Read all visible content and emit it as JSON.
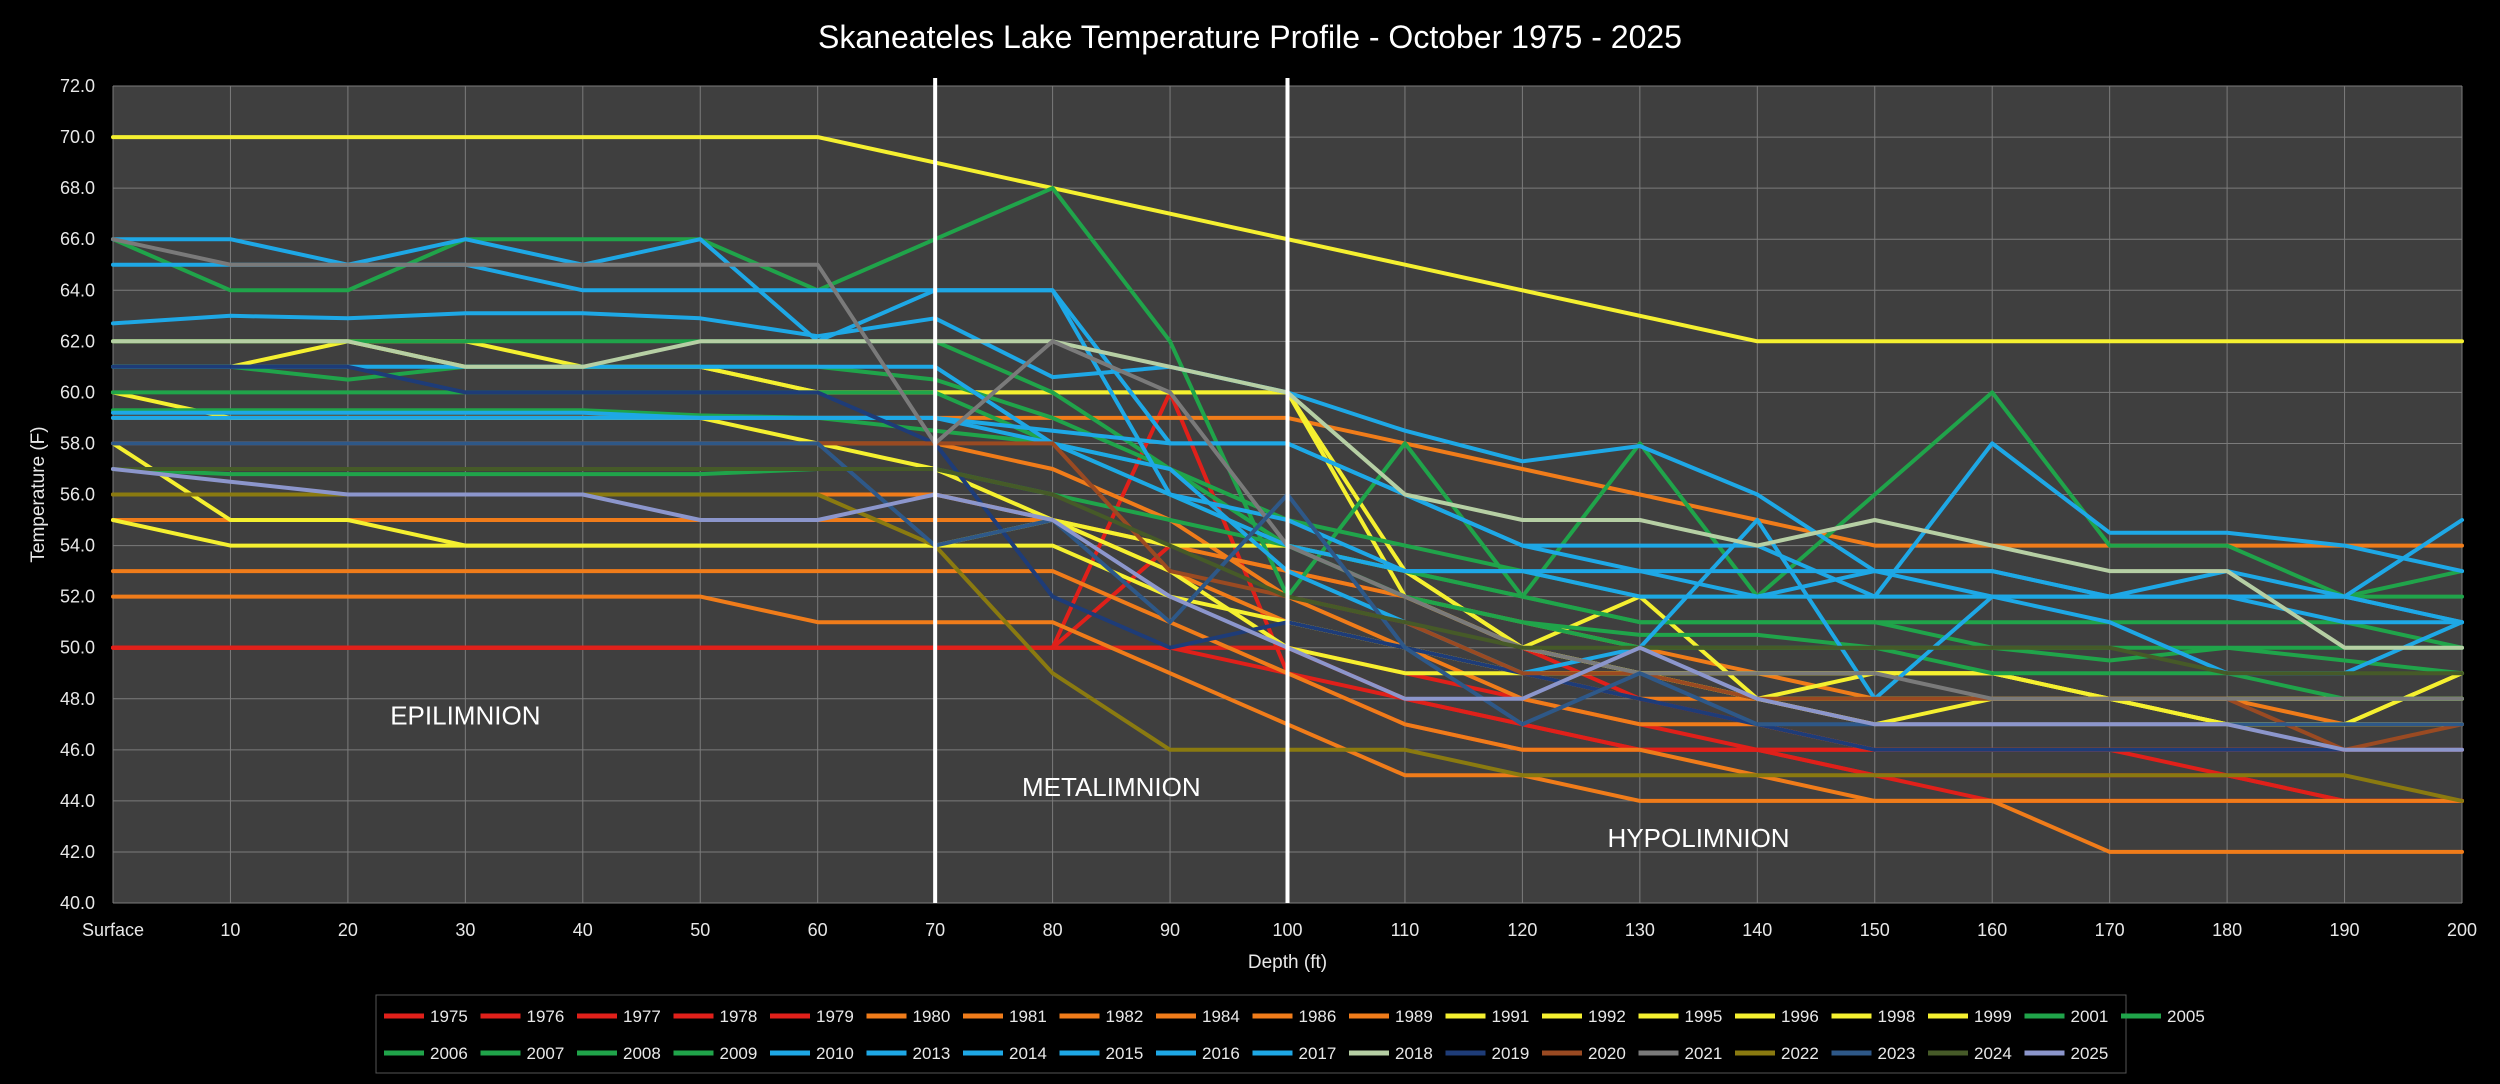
{
  "chart_data": {
    "type": "line",
    "title": "Skaneateles Lake Temperature Profile - October 1975 - 2025",
    "xlabel": "Depth (ft)",
    "ylabel": "Temperature (F)",
    "x": [
      "Surface",
      "10",
      "20",
      "30",
      "40",
      "50",
      "60",
      "70",
      "80",
      "90",
      "100",
      "110",
      "120",
      "130",
      "140",
      "150",
      "160",
      "170",
      "180",
      "190",
      "200"
    ],
    "ylim": [
      40,
      72
    ],
    "yticks": [
      "40.0",
      "42.0",
      "44.0",
      "46.0",
      "48.0",
      "50.0",
      "52.0",
      "54.0",
      "56.0",
      "58.0",
      "60.0",
      "62.0",
      "64.0",
      "66.0",
      "68.0",
      "70.0",
      "72.0"
    ],
    "grid": true,
    "legend_position": "bottom",
    "reference_lines": [
      70,
      100
    ],
    "annotations": [
      {
        "text": "EPILIMNION",
        "x": 30,
        "y": 47
      },
      {
        "text": "METALIMNION",
        "x": 85,
        "y": 44.2
      },
      {
        "text": "HYPOLIMNION",
        "x": 135,
        "y": 42.2
      }
    ],
    "series": [
      {
        "name": "1975",
        "color": "#e0201a",
        "values": [
          50,
          50,
          50,
          50,
          50,
          50,
          50,
          50,
          50,
          50,
          50,
          49,
          48,
          47,
          46,
          45,
          44,
          44,
          44,
          44,
          44
        ]
      },
      {
        "name": "1976",
        "color": "#e0201a",
        "values": [
          50,
          50,
          50,
          50,
          50,
          50,
          50,
          50,
          50,
          50,
          49,
          48,
          47,
          46,
          46,
          45,
          45,
          45,
          45,
          44,
          44
        ]
      },
      {
        "name": "1977",
        "color": "#e0201a",
        "values": [
          50,
          50,
          50,
          50,
          50,
          50,
          50,
          50,
          50,
          50,
          50,
          48,
          47,
          46,
          46,
          46,
          46,
          46,
          46,
          46,
          46
        ]
      },
      {
        "name": "1978",
        "color": "#e0201a",
        "values": [
          50,
          50,
          50,
          50,
          50,
          50,
          50,
          50,
          50,
          60,
          49,
          47,
          46,
          46,
          46,
          46,
          46,
          46,
          45,
          44,
          44
        ]
      },
      {
        "name": "1979",
        "color": "#e0201a",
        "values": [
          50,
          50,
          50,
          50,
          50,
          50,
          50,
          50,
          50,
          54,
          53,
          52,
          50,
          48,
          47,
          46,
          46,
          46,
          46,
          46,
          46
        ]
      },
      {
        "name": "1980",
        "color": "#f07c1a",
        "values": [
          52,
          52,
          52,
          52,
          52,
          52,
          51,
          51,
          51,
          49,
          47,
          45,
          45,
          44,
          44,
          44,
          44,
          42,
          42,
          42,
          42
        ]
      },
      {
        "name": "1981",
        "color": "#f07c1a",
        "values": [
          53,
          53,
          53,
          53,
          53,
          53,
          53,
          53,
          53,
          51,
          49,
          47,
          46,
          46,
          45,
          44,
          44,
          44,
          44,
          44,
          44
        ]
      },
      {
        "name": "1982",
        "color": "#f07c1a",
        "values": [
          55,
          55,
          55,
          55,
          55,
          55,
          55,
          55,
          55,
          53,
          51,
          50,
          49,
          48,
          48,
          47,
          47,
          47,
          47,
          47,
          47
        ]
      },
      {
        "name": "1984",
        "color": "#f07c1a",
        "values": [
          56,
          56,
          56,
          56,
          56,
          56,
          56,
          56,
          55,
          54,
          53,
          52,
          51,
          50,
          49,
          48,
          48,
          48,
          48,
          47,
          47
        ]
      },
      {
        "name": "1986",
        "color": "#f07c1a",
        "values": [
          58,
          58,
          58,
          58,
          58,
          58,
          58,
          58,
          57,
          55,
          52,
          50,
          48,
          47,
          47,
          46,
          46,
          46,
          46,
          46,
          46
        ]
      },
      {
        "name": "1989",
        "color": "#f07c1a",
        "values": [
          59,
          59,
          59,
          59,
          59,
          59,
          59,
          59,
          59,
          59,
          59,
          58,
          57,
          56,
          55,
          54,
          54,
          54,
          54,
          54,
          54
        ]
      },
      {
        "name": "1991",
        "color": "#f5f030",
        "values": [
          70,
          70,
          70,
          70,
          70,
          70,
          70,
          69,
          68,
          67,
          66,
          65,
          64,
          63,
          62,
          62,
          62,
          62,
          62,
          62,
          62
        ]
      },
      {
        "name": "1992",
        "color": "#f5f030",
        "values": [
          62,
          62,
          62,
          61,
          61,
          61,
          60,
          60,
          60,
          60,
          60,
          53,
          50,
          49,
          48,
          48,
          48,
          48,
          47,
          47,
          49
        ]
      },
      {
        "name": "1995",
        "color": "#f5f030",
        "values": [
          61,
          61,
          62,
          62,
          61,
          61,
          60,
          60,
          60,
          60,
          60,
          52,
          50,
          52,
          48,
          49,
          49,
          48,
          47,
          47,
          49
        ]
      },
      {
        "name": "1996",
        "color": "#f5f030",
        "values": [
          55,
          54,
          54,
          54,
          54,
          54,
          54,
          54,
          55,
          54,
          54,
          53,
          50,
          49,
          49,
          49,
          49,
          48,
          48,
          48,
          48
        ]
      },
      {
        "name": "1998",
        "color": "#f5f030",
        "values": [
          58,
          55,
          55,
          54,
          54,
          54,
          54,
          54,
          54,
          52,
          51,
          50,
          49,
          49,
          48,
          47,
          48,
          48,
          47,
          47,
          47
        ]
      },
      {
        "name": "1999",
        "color": "#f5f030",
        "values": [
          60,
          59,
          59,
          59,
          59,
          59,
          58,
          57,
          55,
          53,
          50,
          49,
          49,
          49,
          49,
          49,
          49,
          48,
          48,
          48,
          48
        ]
      },
      {
        "name": "2001",
        "color": "#20a44a",
        "values": [
          66,
          64,
          64,
          66,
          66,
          66,
          64,
          66,
          68,
          62,
          52,
          58,
          52,
          58,
          52,
          56,
          60,
          54,
          54,
          52,
          53
        ]
      },
      {
        "name": "2005",
        "color": "#20a44a",
        "values": [
          62,
          62,
          62,
          62,
          62,
          62,
          62,
          62,
          60,
          57,
          55,
          54,
          53,
          52,
          52,
          52,
          52,
          52,
          52,
          52,
          52
        ]
      },
      {
        "name": "2006",
        "color": "#20a44a",
        "values": [
          61,
          61,
          60.5,
          61,
          61,
          61,
          61,
          60.5,
          59,
          57,
          54,
          53,
          52,
          51,
          51,
          51,
          51,
          51,
          51,
          51,
          50
        ]
      },
      {
        "name": "2007",
        "color": "#20a44a",
        "values": [
          57,
          56.8,
          56.8,
          56.8,
          56.8,
          56.8,
          57,
          57,
          56,
          55,
          54,
          53,
          52,
          51,
          51,
          51,
          50,
          50,
          50,
          50,
          50
        ]
      },
      {
        "name": "2008",
        "color": "#20a44a",
        "values": [
          60,
          60,
          60,
          60,
          60,
          60,
          60,
          60,
          58,
          56,
          54,
          52,
          51,
          50,
          50,
          50,
          49,
          49,
          49,
          48,
          48
        ]
      },
      {
        "name": "2009",
        "color": "#20a44a",
        "values": [
          59.3,
          59.3,
          59.3,
          59.3,
          59.3,
          59.1,
          59,
          58.5,
          58,
          57,
          54,
          52,
          51,
          50.5,
          50.5,
          50,
          50,
          49.5,
          50,
          49.5,
          49
        ]
      },
      {
        "name": "2010",
        "color": "#1ea8e6",
        "values": [
          66,
          66,
          65,
          66,
          65,
          66,
          62,
          64,
          64,
          56,
          54,
          53,
          53,
          53,
          52,
          52,
          52,
          52,
          52,
          52,
          51
        ]
      },
      {
        "name": "2013",
        "color": "#1ea8e6",
        "values": [
          65,
          65,
          65,
          65,
          64,
          64,
          64,
          64,
          64,
          58,
          58,
          56,
          54,
          53,
          53,
          53,
          52,
          52,
          52,
          52,
          51
        ]
      },
      {
        "name": "2014",
        "color": "#1ea8e6",
        "values": [
          62.7,
          63,
          62.9,
          63.1,
          63.1,
          62.9,
          62.2,
          62.9,
          60.6,
          61,
          60,
          58.5,
          57.3,
          57.9,
          56,
          53,
          53,
          52,
          53,
          52,
          55
        ]
      },
      {
        "name": "2015",
        "color": "#1ea8e6",
        "values": [
          61,
          61,
          61,
          61,
          61,
          61,
          61,
          61,
          58,
          56,
          55,
          53,
          53,
          52,
          52,
          53,
          53,
          52,
          52,
          51,
          51
        ]
      },
      {
        "name": "2016",
        "color": "#1ea8e6",
        "values": [
          59,
          59,
          59,
          59,
          59,
          59,
          59,
          59,
          58,
          57,
          53,
          51,
          49,
          50,
          55,
          48,
          52,
          51,
          49,
          49,
          51
        ]
      },
      {
        "name": "2017",
        "color": "#1ea8e6",
        "values": [
          59.2,
          59.2,
          59.2,
          59.2,
          59.2,
          59,
          59,
          59,
          58.5,
          58,
          58,
          56,
          54,
          54,
          54,
          52,
          58,
          54.5,
          54.5,
          54,
          53
        ]
      },
      {
        "name": "2018",
        "color": "#b6cfa4",
        "values": [
          62,
          62,
          62,
          61,
          61,
          62,
          62,
          62,
          62,
          61,
          60,
          56,
          55,
          55,
          54,
          55,
          54,
          53,
          53,
          50,
          50
        ]
      },
      {
        "name": "2019",
        "color": "#1e3c78",
        "values": [
          61,
          61,
          61,
          60,
          60,
          60,
          60,
          58,
          52,
          50,
          51,
          50,
          49,
          48,
          47,
          46,
          46,
          46,
          46,
          46,
          46
        ]
      },
      {
        "name": "2020",
        "color": "#9a4a22",
        "values": [
          58,
          58,
          58,
          58,
          58,
          58,
          58,
          58,
          58,
          53,
          52,
          51,
          49,
          49,
          48,
          48,
          48,
          48,
          48,
          46,
          47
        ]
      },
      {
        "name": "2021",
        "color": "#7a7a7a",
        "values": [
          66,
          65,
          65,
          65,
          65,
          65,
          65,
          58,
          62,
          60,
          54,
          52,
          50,
          49,
          49,
          49,
          48,
          48,
          48,
          48,
          48
        ]
      },
      {
        "name": "2022",
        "color": "#8a7a10",
        "values": [
          56,
          56,
          56,
          56,
          56,
          56,
          56,
          54,
          49,
          46,
          46,
          46,
          45,
          45,
          45,
          45,
          45,
          45,
          45,
          45,
          44
        ]
      },
      {
        "name": "2023",
        "color": "#2e5888",
        "values": [
          58,
          58,
          58,
          58,
          58,
          58,
          58,
          54,
          55,
          51,
          56,
          50,
          47,
          49,
          47,
          47,
          47,
          47,
          47,
          47,
          47
        ]
      },
      {
        "name": "2024",
        "color": "#465a28",
        "values": [
          57,
          57,
          57,
          57,
          57,
          57,
          57,
          57,
          56,
          54,
          52,
          51,
          50,
          50,
          50,
          50,
          50,
          50,
          49,
          49,
          49
        ]
      },
      {
        "name": "2025",
        "color": "#8c96cc",
        "values": [
          57,
          56.5,
          56,
          56,
          56,
          55,
          55,
          56,
          55,
          52,
          50,
          48,
          48,
          50,
          48,
          47,
          47,
          47,
          47,
          46,
          46
        ]
      }
    ]
  }
}
